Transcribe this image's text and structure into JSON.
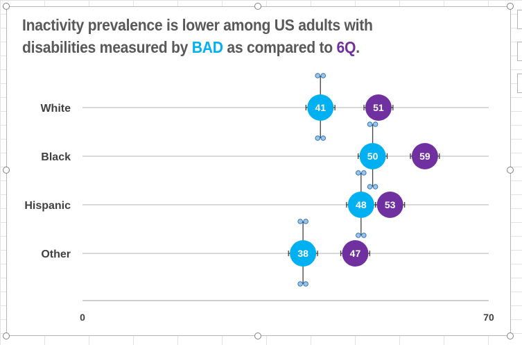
{
  "chart_data": {
    "type": "dot-plot",
    "title_parts": [
      "Inactivity prevalence is lower among US adults with",
      "disabilities measured by ",
      "BAD",
      " as compared to ",
      "6Q",
      "."
    ],
    "categories": [
      "White",
      "Black",
      "Hispanic",
      "Other"
    ],
    "series": [
      {
        "name": "BAD",
        "color": "#00b0f0",
        "values": [
          41,
          50,
          48,
          38
        ],
        "ci_halfwidth": 2.5
      },
      {
        "name": "6Q",
        "color": "#7030a0",
        "values": [
          51,
          59,
          53,
          47
        ],
        "ci_halfwidth": 2.5
      }
    ],
    "xlim": [
      0,
      70
    ],
    "x_ticks": [
      "0",
      "70"
    ]
  }
}
